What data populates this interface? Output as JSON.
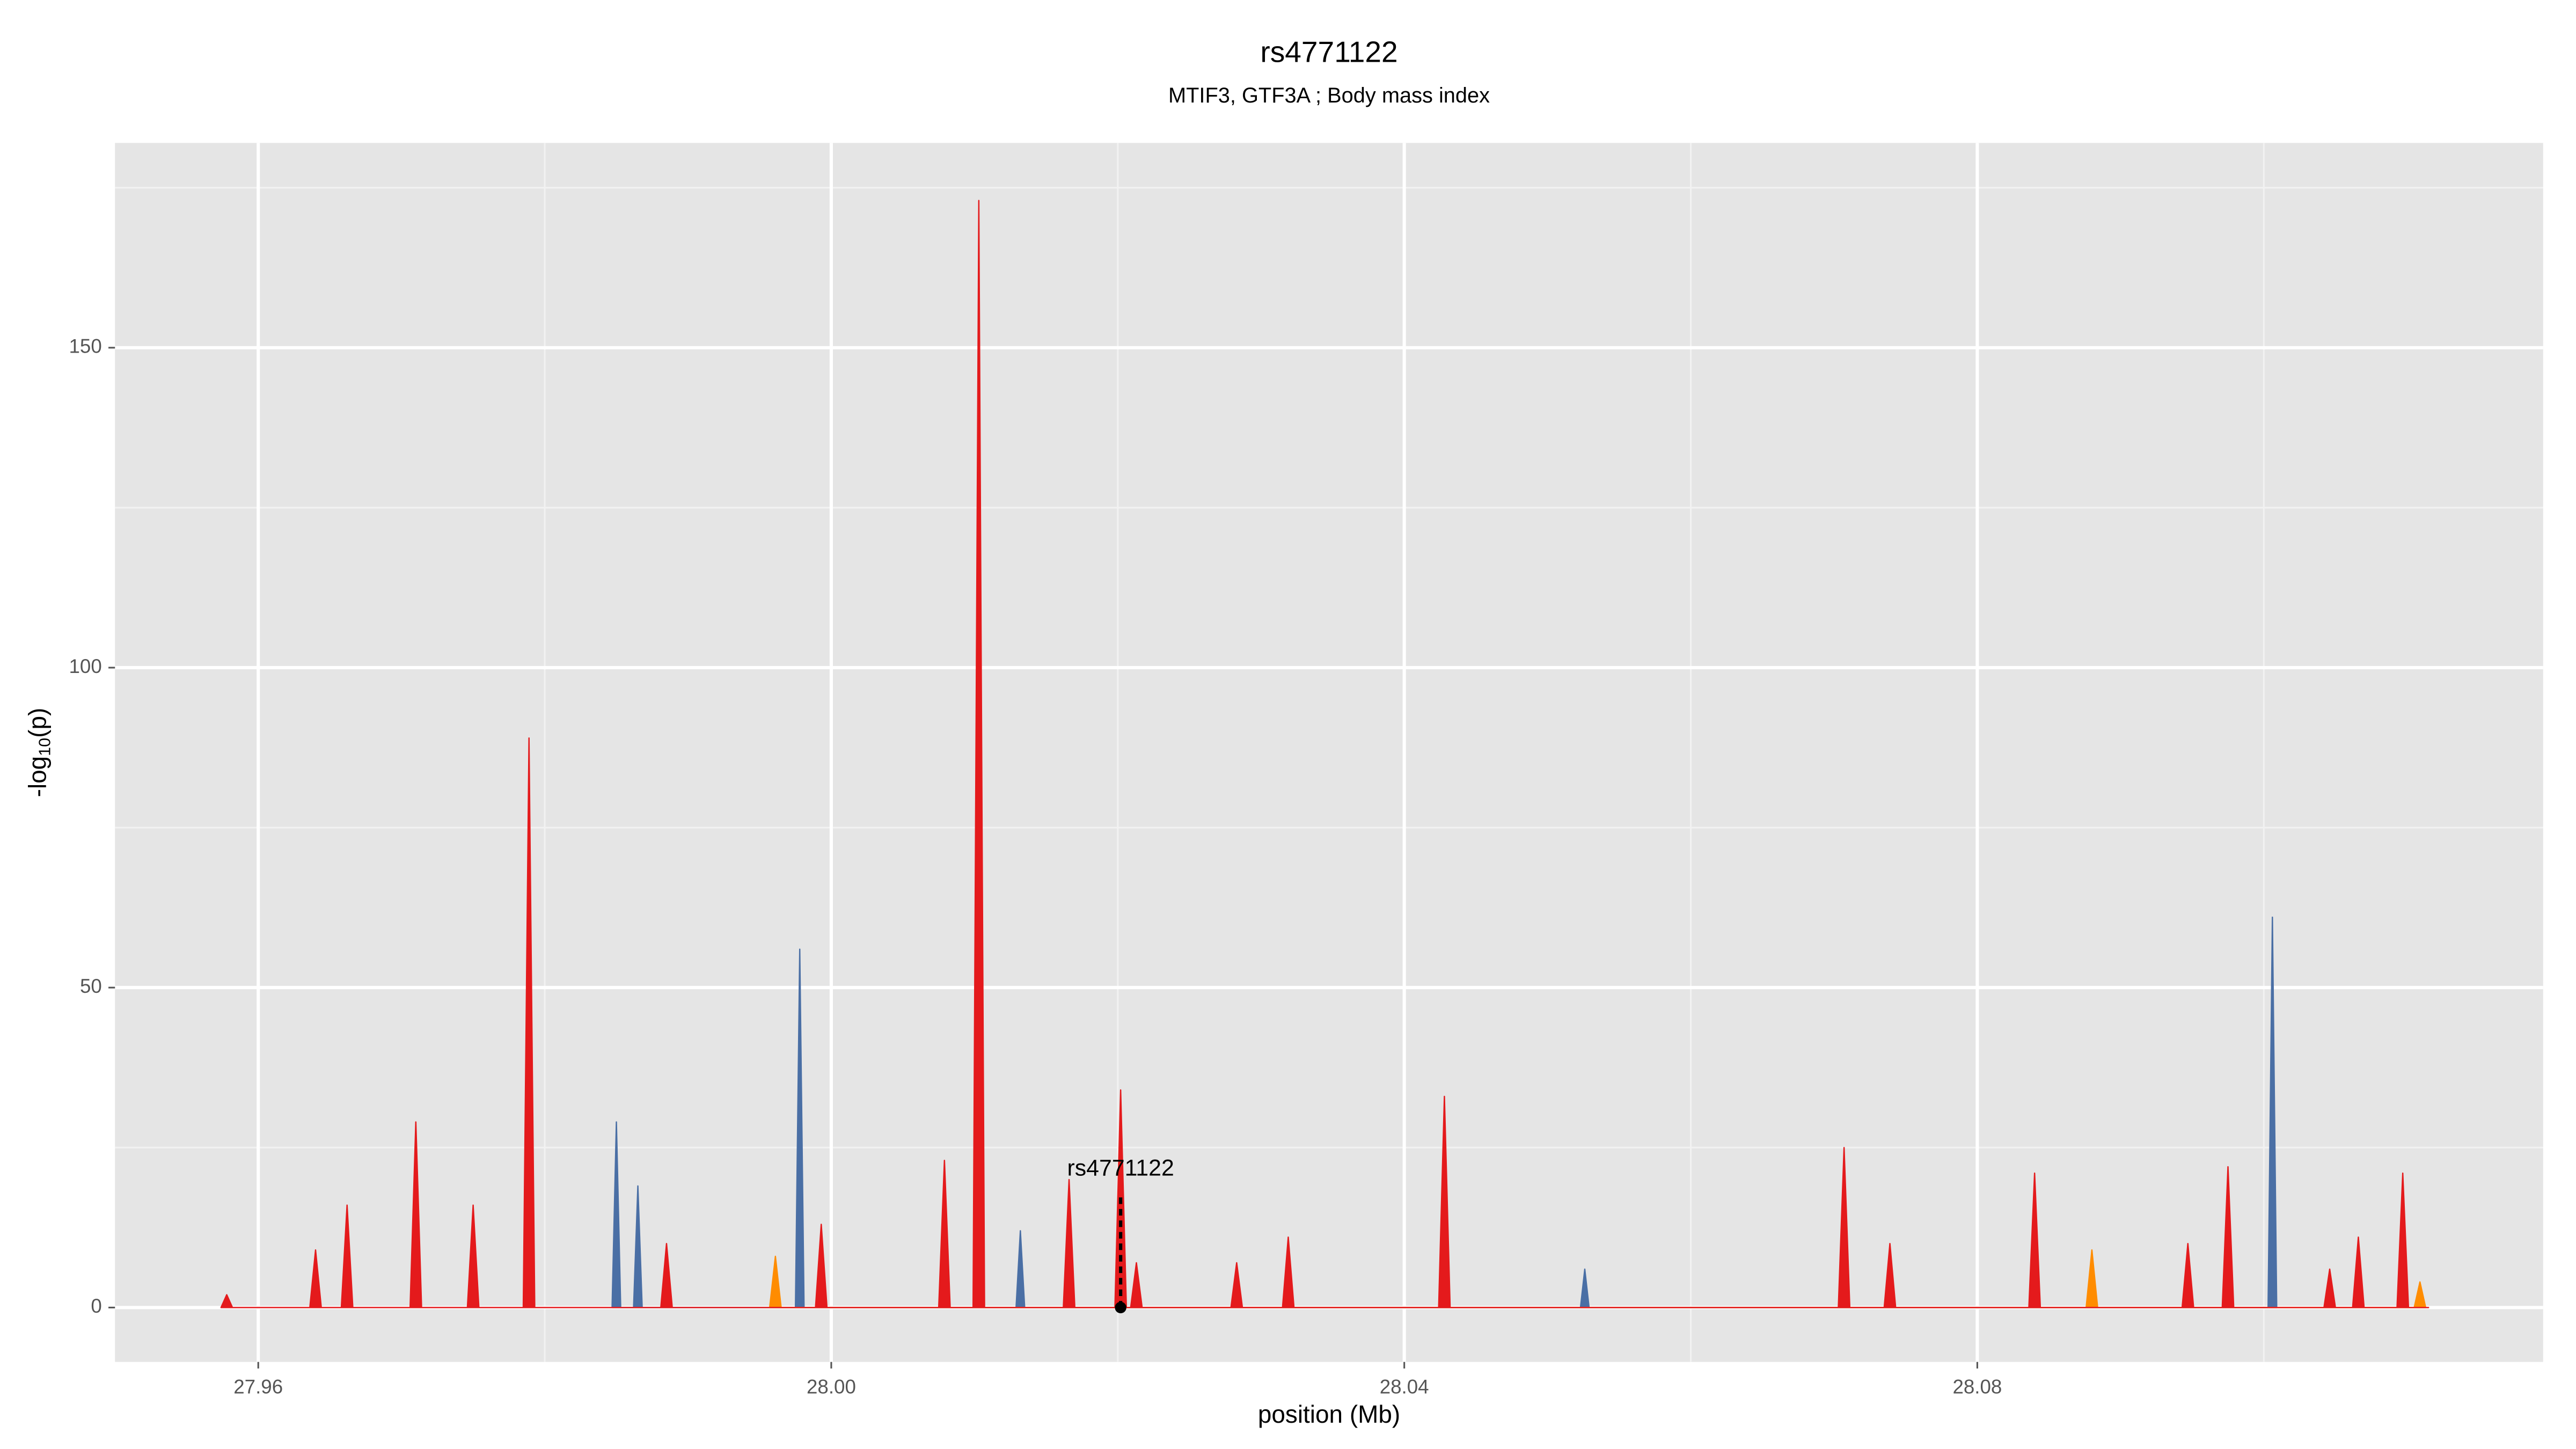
{
  "chart_data": {
    "type": "area",
    "title": "rs4771122",
    "subtitle": "MTIF3, GTF3A ; Body mass index",
    "x_label": "position (Mb)",
    "y_label": {
      "prefix": "-log",
      "subscript": "10",
      "suffix": "(p)"
    },
    "xlim": [
      27.95,
      28.1195
    ],
    "ylim": [
      -8.5,
      182
    ],
    "xticks": [
      27.96,
      {
        "value": 28,
        "label": "28.00"
      },
      28.04,
      28.08
    ],
    "yticks": [
      0,
      50,
      100,
      150
    ],
    "xminor": [
      27.98,
      28.02,
      28.06,
      28.1
    ],
    "yminor": [
      25,
      75,
      125,
      175
    ],
    "grid": true,
    "series": [
      {
        "color": "#4a6fa5",
        "x": [
          27.9847,
          27.985,
          27.9853,
          27.9862,
          27.9865,
          27.9868,
          27.9975,
          27.9978,
          27.9981,
          28.0129,
          28.0132,
          28.0135,
          28.0523,
          28.0526,
          28.0529,
          28.1003,
          28.1006,
          28.1009
        ],
        "values": [
          0,
          29,
          0,
          0,
          19,
          0,
          0,
          56,
          0,
          0,
          12,
          0,
          0,
          6,
          0,
          0,
          61,
          0
        ]
      },
      {
        "color": "#ff8c00",
        "x": [
          27.9957,
          27.9961,
          27.9965,
          28.0876,
          28.088,
          28.0884,
          28.1105,
          28.1109,
          28.1113
        ],
        "values": [
          0,
          8,
          0,
          0,
          9,
          0,
          0,
          4,
          0
        ]
      },
      {
        "color": "#e41a1c",
        "x": [
          27.9574,
          27.9578,
          27.9582,
          27.9636,
          27.964,
          27.9644,
          27.9658,
          27.9662,
          27.9666,
          27.9706,
          27.971,
          27.9714,
          27.9746,
          27.975,
          27.9754,
          27.9785,
          27.9789,
          27.9793,
          27.9881,
          27.9885,
          27.9889,
          27.9989,
          27.9993,
          27.9997,
          28.0075,
          28.0079,
          28.0083,
          28.0099,
          28.0103,
          28.0107,
          28.0162,
          28.0166,
          28.017,
          28.0198,
          28.0202,
          28.0206,
          28.0209,
          28.0213,
          28.0217,
          28.0279,
          28.0283,
          28.0287,
          28.0315,
          28.0319,
          28.0323,
          28.0424,
          28.0428,
          28.0432,
          28.0703,
          28.0707,
          28.0711,
          28.0735,
          28.0739,
          28.0743,
          28.0836,
          28.084,
          28.0844,
          28.0943,
          28.0947,
          28.0951,
          28.0971,
          28.0975,
          28.0979,
          28.1042,
          28.1046,
          28.105,
          28.1062,
          28.1066,
          28.107,
          28.1093,
          28.1097,
          28.1101,
          28.1115
        ],
        "values": [
          0,
          2,
          0,
          0,
          9,
          0,
          0,
          16,
          0,
          0,
          29,
          0,
          0,
          16,
          0,
          0,
          89,
          0,
          0,
          10,
          0,
          0,
          13,
          0,
          0,
          23,
          0,
          0,
          173,
          0,
          0,
          20,
          0,
          0,
          34,
          0,
          0,
          7,
          0,
          0,
          7,
          0,
          0,
          11,
          0,
          0,
          33,
          0,
          0,
          25,
          0,
          0,
          10,
          0,
          0,
          21,
          0,
          0,
          10,
          0,
          0,
          22,
          0,
          0,
          6,
          0,
          0,
          11,
          0,
          0,
          21,
          0,
          0
        ]
      }
    ],
    "annotation": {
      "text": "rs4771122",
      "x": 28.0202,
      "y": 0
    }
  }
}
